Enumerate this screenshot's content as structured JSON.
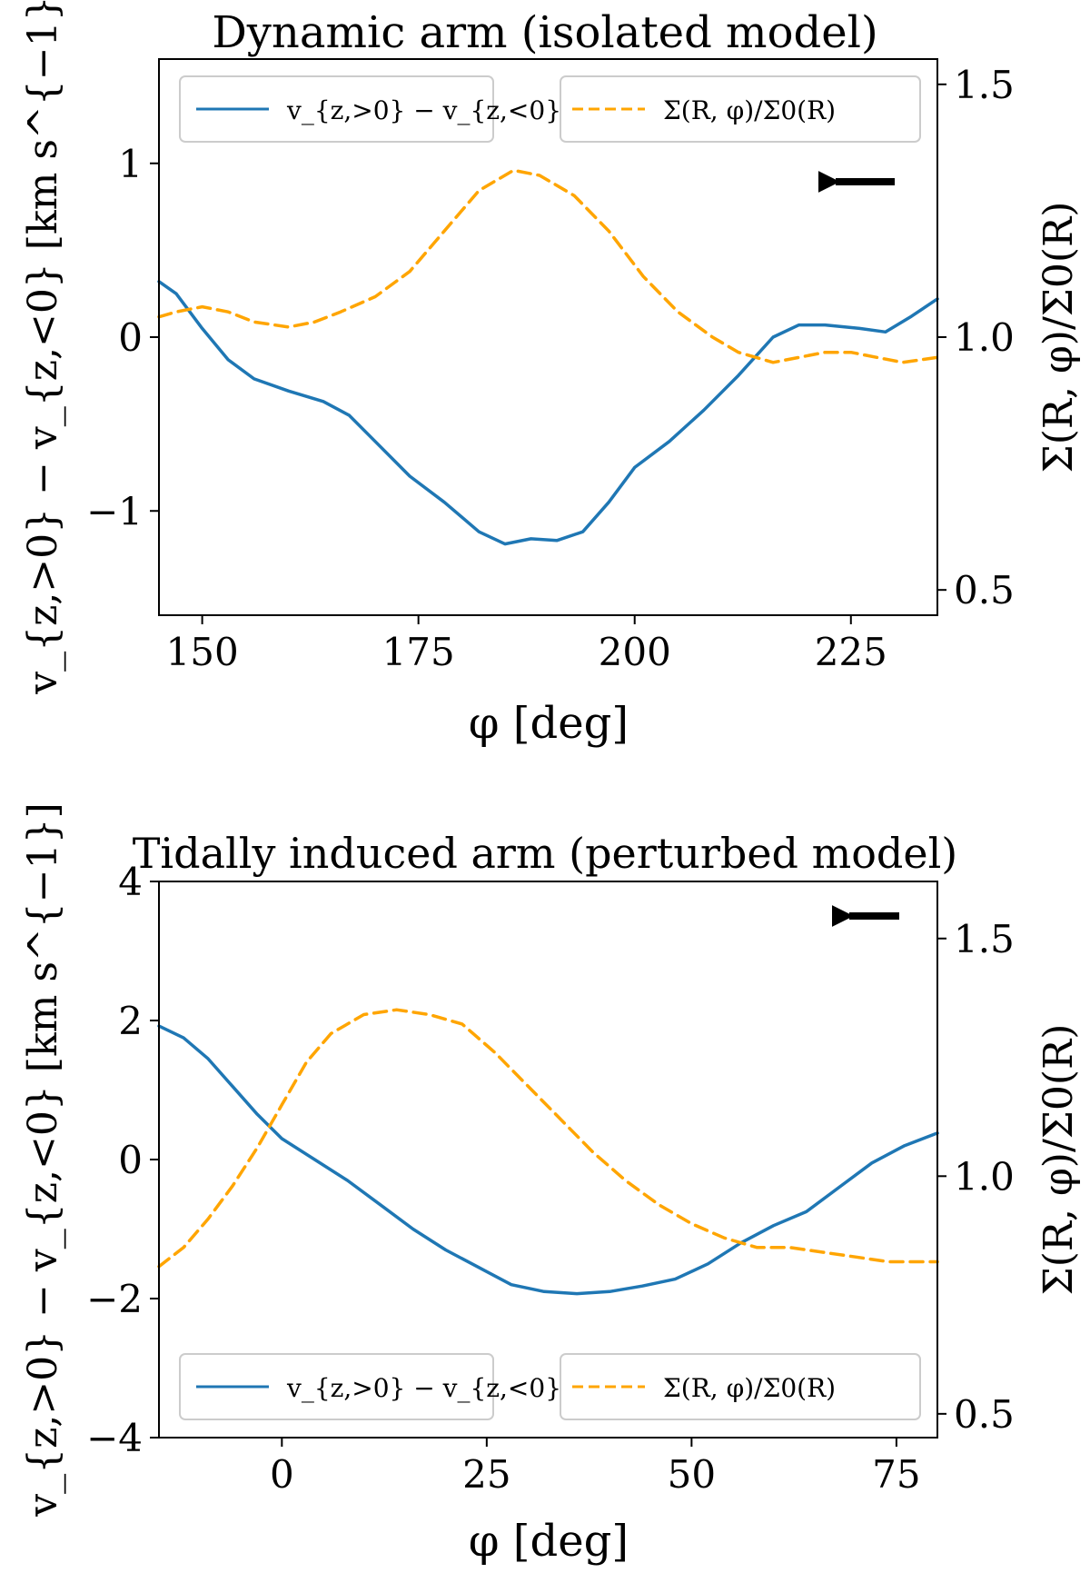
{
  "chart_data": [
    {
      "type": "line",
      "title": "Dynamic arm (isolated model)",
      "xlabel": "φ [deg]",
      "ylabel": "v_{z,>0} − v_{z,<0} [km s^{−1}]",
      "ylabel_right": "Σ(R, φ)/Σ0(R)",
      "xlim": [
        145,
        235
      ],
      "ylim": [
        -1.6,
        1.6
      ],
      "ylim_right": [
        0.45,
        1.55
      ],
      "xticks": [
        150,
        175,
        200,
        225
      ],
      "xtick_labels": [
        "150",
        "175",
        "200",
        "225"
      ],
      "yticks": [
        -1,
        0,
        1
      ],
      "ytick_labels": [
        "−1",
        "0",
        "1"
      ],
      "yticks_right": [
        0.5,
        1.0,
        1.5
      ],
      "ytick_labels_right": [
        "0.5",
        "1.0",
        "1.5"
      ],
      "legend_left": "v_{z,>0} − v_{z,<0}",
      "legend_right": "Σ(R, φ)/Σ0(R)",
      "legend_position": "top",
      "arrow_direction": "left",
      "series": [
        {
          "name": "v_{z,>0} − v_{z,<0}",
          "axis": "left",
          "color": "#1f77b4",
          "dash": "solid",
          "x": [
            145,
            147,
            150,
            153,
            156,
            160,
            164,
            167,
            170,
            174,
            178,
            182,
            185,
            188,
            191,
            194,
            197,
            200,
            204,
            208,
            212,
            216,
            219,
            222,
            226,
            229,
            232,
            235
          ],
          "y": [
            0.32,
            0.25,
            0.05,
            -0.13,
            -0.24,
            -0.31,
            -0.37,
            -0.45,
            -0.6,
            -0.8,
            -0.95,
            -1.12,
            -1.19,
            -1.16,
            -1.17,
            -1.12,
            -0.95,
            -0.75,
            -0.6,
            -0.42,
            -0.22,
            0.0,
            0.07,
            0.07,
            0.05,
            0.03,
            0.12,
            0.22
          ]
        },
        {
          "name": "Σ(R, φ)/Σ0(R)",
          "axis": "right",
          "color": "#ffa500",
          "dash": "dashed",
          "x": [
            145,
            147,
            150,
            153,
            156,
            160,
            163,
            166,
            170,
            174,
            178,
            182,
            186,
            189,
            193,
            197,
            201,
            205,
            209,
            212,
            216,
            219,
            222,
            225,
            228,
            231,
            235
          ],
          "y": [
            1.04,
            1.05,
            1.06,
            1.05,
            1.03,
            1.02,
            1.03,
            1.05,
            1.08,
            1.13,
            1.21,
            1.29,
            1.33,
            1.32,
            1.28,
            1.21,
            1.12,
            1.05,
            1.0,
            0.97,
            0.95,
            0.96,
            0.97,
            0.97,
            0.96,
            0.95,
            0.96
          ]
        }
      ]
    },
    {
      "type": "line",
      "title": "Tidally induced arm (perturbed model)",
      "xlabel": "φ [deg]",
      "ylabel": "v_{z,>0} − v_{z,<0} [km s^{−1}]",
      "ylabel_right": "Σ(R, φ)/Σ0(R)",
      "xlim": [
        -15,
        80
      ],
      "ylim": [
        -4,
        4
      ],
      "ylim_right": [
        0.45,
        1.62
      ],
      "xticks": [
        0,
        25,
        50,
        75
      ],
      "xtick_labels": [
        "0",
        "25",
        "50",
        "75"
      ],
      "yticks": [
        -4,
        -2,
        0,
        2,
        4
      ],
      "ytick_labels": [
        "−4",
        "−2",
        "0",
        "2",
        "4"
      ],
      "yticks_right": [
        0.5,
        1.0,
        1.5
      ],
      "ytick_labels_right": [
        "0.5",
        "1.0",
        "1.5"
      ],
      "legend_left": "v_{z,>0} − v_{z,<0}",
      "legend_right": "Σ(R, φ)/Σ0(R)",
      "legend_position": "bottom",
      "arrow_direction": "left",
      "series": [
        {
          "name": "v_{z,>0} − v_{z,<0}",
          "axis": "left",
          "color": "#1f77b4",
          "dash": "solid",
          "x": [
            -15,
            -12,
            -9,
            -6,
            -3,
            0,
            4,
            8,
            12,
            16,
            20,
            24,
            28,
            32,
            36,
            40,
            44,
            48,
            52,
            56,
            60,
            64,
            68,
            72,
            76,
            80
          ],
          "y": [
            1.92,
            1.75,
            1.45,
            1.05,
            0.65,
            0.3,
            0.0,
            -0.3,
            -0.65,
            -1.0,
            -1.3,
            -1.55,
            -1.8,
            -1.9,
            -1.93,
            -1.9,
            -1.82,
            -1.72,
            -1.5,
            -1.2,
            -0.95,
            -0.75,
            -0.4,
            -0.05,
            0.2,
            0.38
          ]
        },
        {
          "name": "Σ(R, φ)/Σ0(R)",
          "axis": "right",
          "color": "#ffa500",
          "dash": "dashed",
          "x": [
            -15,
            -12,
            -9,
            -6,
            -3,
            0,
            3,
            6,
            10,
            14,
            18,
            22,
            26,
            30,
            34,
            38,
            42,
            46,
            50,
            54,
            58,
            62,
            66,
            70,
            74,
            78,
            80
          ],
          "y": [
            0.81,
            0.85,
            0.91,
            0.98,
            1.06,
            1.15,
            1.24,
            1.3,
            1.34,
            1.35,
            1.34,
            1.32,
            1.26,
            1.19,
            1.12,
            1.05,
            0.99,
            0.94,
            0.9,
            0.87,
            0.85,
            0.85,
            0.84,
            0.83,
            0.82,
            0.82,
            0.82
          ]
        }
      ]
    }
  ]
}
